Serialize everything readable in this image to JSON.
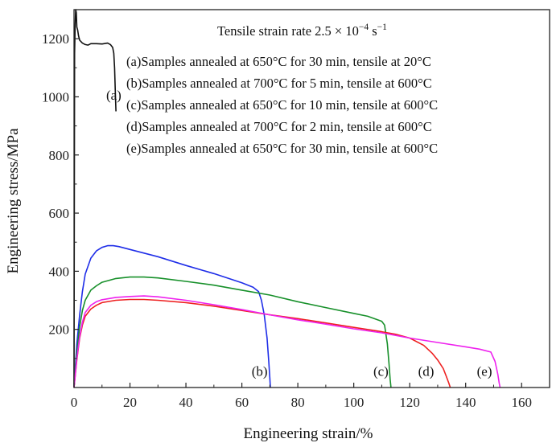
{
  "chart_data": {
    "type": "line",
    "xlabel": "Engineering strain/%",
    "ylabel": "Engineering stress/MPa",
    "xlim": [
      0,
      170
    ],
    "ylim": [
      0,
      1300
    ],
    "xticks": [
      0,
      20,
      40,
      60,
      80,
      100,
      120,
      140,
      160
    ],
    "yticks": [
      200,
      400,
      600,
      800,
      1000,
      1200
    ],
    "grid": false,
    "legend_position": "top-right",
    "annotation": {
      "prefix": "Tensile strain rate 2.5 × 10",
      "exponent": "−4",
      "unit": " s",
      "unit_exponent": "−1"
    },
    "legend": [
      "(a)Samples annealed at 650°C for 30 min, tensile at 20°C",
      "(b)Samples annealed at 700°C for 5 min, tensile at 600°C",
      "(c)Samples annealed at 650°C for 10 min, tensile at 600°C",
      "(d)Samples annealed at 700°C for 2 min, tensile at 600°C",
      "(e)Samples annealed at 650°C for 30 min, tensile at 600°C"
    ],
    "series": [
      {
        "label": "(a)",
        "color": "#111111",
        "label_at": [
          11.5,
          990
        ],
        "x": [
          0,
          0.2,
          0.4,
          0.6,
          0.8,
          1.0,
          1.3,
          1.6,
          2.0,
          3.0,
          4.0,
          5.0,
          6.0,
          8.0,
          10.0,
          12.0,
          13.0,
          13.8,
          14.2,
          14.5,
          14.8,
          15.0
        ],
        "y": [
          0,
          1150,
          1250,
          1300,
          1290,
          1240,
          1230,
          1210,
          1195,
          1185,
          1180,
          1178,
          1183,
          1183,
          1182,
          1185,
          1180,
          1170,
          1150,
          1100,
          1000,
          950
        ]
      },
      {
        "label": "(b)",
        "color": "#1f2ee8",
        "label_at": [
          63.5,
          40
        ],
        "x": [
          0,
          1,
          2,
          3,
          4,
          6,
          8,
          10,
          12,
          14,
          16,
          20,
          30,
          40,
          50,
          60,
          64,
          66,
          67,
          68,
          69,
          69.6,
          70,
          70.2
        ],
        "y": [
          0,
          150,
          250,
          330,
          390,
          445,
          470,
          482,
          488,
          488,
          485,
          475,
          450,
          420,
          392,
          360,
          345,
          330,
          300,
          250,
          170,
          90,
          30,
          0
        ]
      },
      {
        "label": "(c)",
        "color": "#17902a",
        "label_at": [
          107,
          40
        ],
        "x": [
          0,
          1,
          2,
          3,
          4,
          6,
          8,
          10,
          15,
          20,
          25,
          30,
          40,
          50,
          60,
          70,
          80,
          90,
          100,
          105,
          110,
          111,
          112,
          112.6,
          113,
          113.3
        ],
        "y": [
          0,
          120,
          210,
          265,
          300,
          335,
          350,
          362,
          375,
          380,
          380,
          377,
          365,
          352,
          335,
          318,
          295,
          275,
          255,
          245,
          228,
          215,
          150,
          80,
          30,
          0
        ]
      },
      {
        "label": "(d)",
        "color": "#ee2020",
        "label_at": [
          123,
          40
        ],
        "x": [
          0,
          1,
          2,
          3,
          4,
          6,
          8,
          10,
          15,
          20,
          25,
          30,
          40,
          50,
          60,
          70,
          80,
          90,
          100,
          110,
          115,
          120,
          125,
          128,
          130,
          132,
          133,
          134,
          134.5
        ],
        "y": [
          0,
          95,
          170,
          215,
          245,
          270,
          283,
          292,
          300,
          303,
          303,
          300,
          292,
          280,
          265,
          250,
          237,
          222,
          207,
          192,
          183,
          170,
          145,
          118,
          95,
          65,
          40,
          15,
          0
        ]
      },
      {
        "label": "(e)",
        "color": "#ee22ee",
        "label_at": [
          144,
          40
        ],
        "x": [
          0,
          1,
          2,
          3,
          4,
          6,
          8,
          10,
          15,
          20,
          25,
          30,
          40,
          50,
          60,
          70,
          80,
          90,
          100,
          110,
          120,
          130,
          140,
          145,
          149,
          150.5,
          151.5,
          152,
          152.3
        ],
        "y": [
          0,
          100,
          175,
          225,
          258,
          283,
          295,
          302,
          310,
          313,
          315,
          312,
          300,
          285,
          268,
          250,
          233,
          218,
          202,
          188,
          170,
          155,
          140,
          132,
          122,
          90,
          45,
          15,
          0
        ]
      }
    ]
  }
}
